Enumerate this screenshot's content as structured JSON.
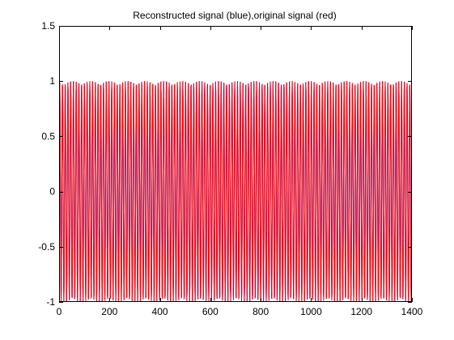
{
  "chart_data": {
    "type": "line",
    "title": "Reconstructed signal (blue),original signal (red)",
    "xlabel": "",
    "ylabel": "",
    "xlim": [
      0,
      1400
    ],
    "ylim": [
      -1,
      1.5
    ],
    "xticks": [
      0,
      200,
      400,
      600,
      800,
      1000,
      1200,
      1400
    ],
    "xtick_labels": [
      "0",
      "200",
      "400",
      "600",
      "800",
      "1000",
      "1200",
      "1400"
    ],
    "yticks": [
      -1,
      -0.5,
      0,
      0.5,
      1,
      1.5
    ],
    "ytick_labels": [
      "-1",
      "-0.5",
      "0",
      "0.5",
      "1",
      "1.5"
    ],
    "grid": false,
    "series": [
      {
        "color": "#ff0000",
        "sampling": {
          "x_start": 0,
          "x_end": 1400,
          "count": 1401
        },
        "signal": {
          "kind": "sine",
          "amplitude": 1,
          "period": 10.85,
          "phase_deg": 0
        }
      },
      {
        "color": "#0000ff",
        "sampling": {
          "x_start": 0,
          "x_end": 1400,
          "count": 1401
        },
        "signal": {
          "kind": "sine",
          "amplitude": 1,
          "period": 10.85,
          "phase_deg": 0
        }
      }
    ]
  }
}
